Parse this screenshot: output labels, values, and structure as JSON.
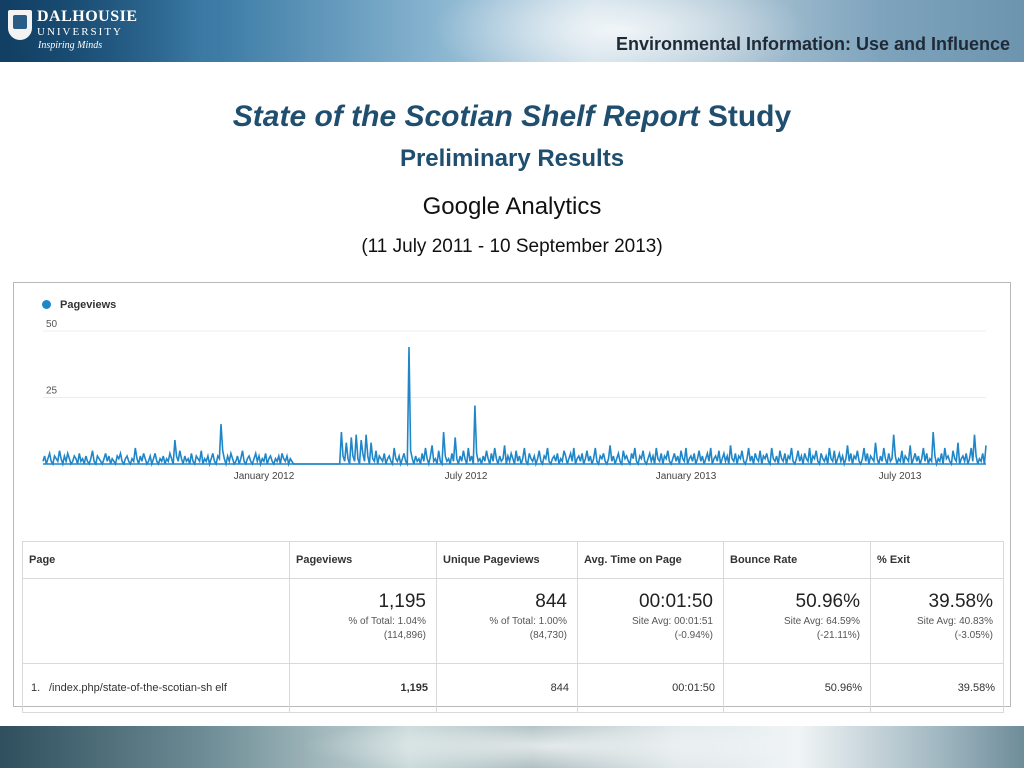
{
  "header": {
    "logo_line1": "DALHOUSIE",
    "logo_line2": "UNIVERSITY",
    "logo_line3": "Inspiring Minds",
    "title": "Environmental Information: Use and Influence"
  },
  "slide": {
    "title_italic": "State of the Scotian Shelf Report",
    "title_rest": " Study",
    "subtitle": "Preliminary Results",
    "line3": "Google Analytics",
    "line4": "(11 July 2011 - 10 September 2013)"
  },
  "chart_data": {
    "type": "line",
    "legend": "Pageviews",
    "color": "#1f86c8",
    "yticks": [
      "50",
      "25"
    ],
    "ylim": [
      0,
      50
    ],
    "xticks": [
      "January 2012",
      "July 2012",
      "January 2013",
      "July 2013"
    ],
    "series": [
      {
        "name": "Pageviews",
        "values": [
          1,
          3,
          0,
          2,
          4,
          1,
          0,
          3,
          2,
          1,
          5,
          2,
          0,
          3,
          1,
          4,
          2,
          0,
          1,
          3,
          2,
          0,
          4,
          1,
          2,
          0,
          3,
          1,
          0,
          2,
          5,
          1,
          0,
          3,
          2,
          1,
          0,
          2,
          4,
          1,
          3,
          0,
          2,
          1,
          0,
          3,
          2,
          4,
          1,
          0,
          2,
          3,
          1,
          0,
          2,
          1,
          6,
          2,
          0,
          3,
          1,
          4,
          2,
          0,
          1,
          3,
          0,
          2,
          4,
          1,
          0,
          2,
          1,
          3,
          0,
          2,
          1,
          4,
          2,
          0,
          9,
          3,
          1,
          5,
          2,
          0,
          3,
          1,
          2,
          0,
          4,
          1,
          0,
          3,
          2,
          1,
          5,
          0,
          2,
          1,
          3,
          0,
          2,
          4,
          1,
          0,
          3,
          2,
          15,
          5,
          2,
          0,
          3,
          1,
          4,
          2,
          0,
          1,
          3,
          0,
          2,
          5,
          1,
          0,
          2,
          3,
          1,
          0,
          2,
          4,
          1,
          3,
          0,
          2,
          1,
          4,
          0,
          2,
          3,
          1,
          0,
          2,
          1,
          3,
          0,
          4,
          2,
          1,
          3,
          0,
          2,
          1,
          0,
          0,
          0,
          0,
          0,
          0,
          0,
          0,
          0,
          0,
          0,
          0,
          0,
          0,
          0,
          0,
          0,
          0,
          0,
          0,
          0,
          0,
          0,
          0,
          0,
          0,
          0,
          0,
          0,
          12,
          3,
          1,
          8,
          2,
          0,
          10,
          3,
          1,
          11,
          2,
          0,
          9,
          4,
          1,
          11,
          3,
          0,
          8,
          2,
          1,
          5,
          0,
          3,
          2,
          1,
          4,
          0,
          2,
          3,
          1,
          0,
          6,
          2,
          1,
          3,
          0,
          2,
          4,
          1,
          0,
          44,
          5,
          2,
          0,
          3,
          1,
          2,
          0,
          4,
          1,
          6,
          2,
          0,
          3,
          7,
          1,
          2,
          0,
          5,
          1,
          0,
          12,
          3,
          1,
          2,
          0,
          4,
          1,
          10,
          2,
          0,
          3,
          1,
          5,
          2,
          0,
          6,
          1,
          3,
          0,
          22,
          4,
          1,
          2,
          0,
          3,
          1,
          5,
          2,
          0,
          4,
          1,
          6,
          2,
          0,
          3,
          1,
          2,
          7,
          0,
          3,
          1,
          4,
          2,
          0,
          5,
          1,
          3,
          0,
          2,
          6,
          1,
          0,
          4,
          2,
          1,
          3,
          0,
          2,
          5,
          1,
          0,
          3,
          2,
          6,
          1,
          0,
          2,
          3,
          1,
          4,
          0,
          2,
          1,
          5,
          3,
          0,
          2,
          4,
          1,
          6,
          0,
          2,
          3,
          1,
          4,
          0,
          2,
          5,
          1,
          3,
          0,
          2,
          6,
          1,
          0,
          3,
          2,
          4,
          1,
          0,
          2,
          7,
          1,
          3,
          0,
          2,
          4,
          1,
          0,
          5,
          2,
          3,
          1,
          0,
          4,
          2,
          6,
          1,
          0,
          3,
          2,
          5,
          1,
          0,
          2,
          4,
          1,
          3,
          0,
          6,
          2,
          1,
          4,
          0,
          3,
          2,
          5,
          1,
          0,
          2,
          4,
          1,
          3,
          0,
          5,
          2,
          1,
          6,
          0,
          2,
          3,
          1,
          4,
          0,
          2,
          5,
          1,
          3,
          0,
          2,
          4,
          1,
          6,
          0,
          2,
          3,
          1,
          5,
          0,
          2,
          4,
          1,
          3,
          0,
          7,
          2,
          1,
          4,
          0,
          3,
          2,
          5,
          1,
          0,
          2,
          6,
          1,
          3,
          0,
          4,
          2,
          1,
          5,
          0,
          3,
          2,
          4,
          1,
          0,
          6,
          2,
          1,
          3,
          0,
          5,
          2,
          1,
          4,
          0,
          3,
          2,
          6,
          1,
          0,
          2,
          5,
          1,
          3,
          0,
          4,
          2,
          1,
          6,
          0,
          3,
          2,
          5,
          1,
          0,
          4,
          2,
          1,
          3,
          0,
          6,
          2,
          1,
          5,
          0,
          2,
          4,
          1,
          3,
          0,
          2,
          7,
          1,
          4,
          0,
          3,
          2,
          5,
          1,
          0,
          2,
          6,
          1,
          4,
          0,
          3,
          2,
          1,
          8,
          2,
          0,
          3,
          1,
          6,
          2,
          0,
          4,
          1,
          2,
          11,
          3,
          0,
          2,
          1,
          5,
          0,
          3,
          2,
          1,
          7,
          0,
          2,
          4,
          1,
          3,
          0,
          2,
          6,
          1,
          4,
          0,
          2,
          1,
          12,
          3,
          0,
          2,
          1,
          4,
          0,
          6,
          2,
          3,
          1,
          0,
          5,
          2,
          1,
          8,
          0,
          2,
          3,
          1,
          4,
          0,
          2,
          6,
          1,
          11,
          3,
          0,
          2,
          1,
          4,
          0,
          7
        ]
      }
    ]
  },
  "table": {
    "columns": [
      "Page",
      "Pageviews",
      "Unique Pageviews",
      "Avg. Time on Page",
      "Bounce Rate",
      "% Exit"
    ],
    "summary": [
      {
        "big": "1,195",
        "sub1": "% of Total: 1.04%",
        "sub2": "(114,896)"
      },
      {
        "big": "844",
        "sub1": "% of Total: 1.00%",
        "sub2": "(84,730)"
      },
      {
        "big": "00:01:50",
        "sub1": "Site Avg: 00:01:51",
        "sub2": "(-0.94%)"
      },
      {
        "big": "50.96%",
        "sub1": "Site Avg: 64.59%",
        "sub2": "(-21.11%)"
      },
      {
        "big": "39.58%",
        "sub1": "Site Avg: 40.83%",
        "sub2": "(-3.05%)"
      }
    ],
    "rows": [
      {
        "num": "1.",
        "page": "/index.php/state-of-the-scotian-sh elf",
        "pageviews": "1,195",
        "unique": "844",
        "avg_time": "00:01:50",
        "bounce": "50.96%",
        "exit": "39.58%"
      }
    ]
  }
}
